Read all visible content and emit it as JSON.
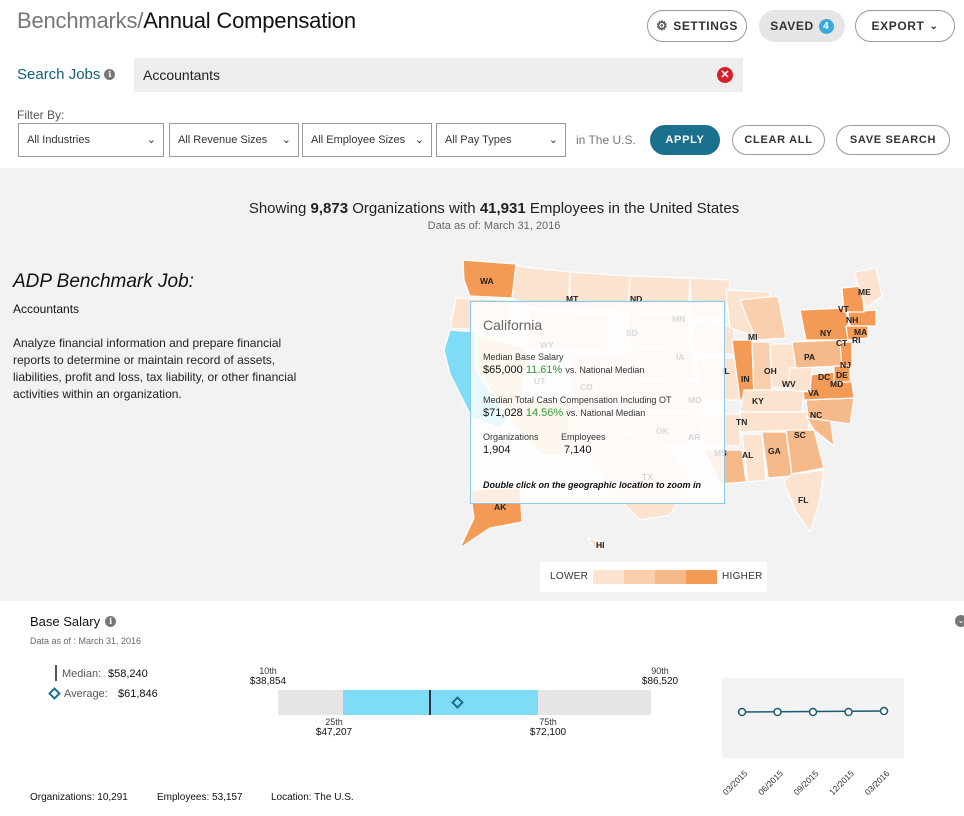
{
  "header": {
    "breadcrumb": "Benchmarks/",
    "title": "Annual Compensation",
    "settings_label": "SETTINGS",
    "saved_label": "SAVED",
    "saved_count": "4",
    "export_label": "EXPORT"
  },
  "search": {
    "label": "Search Jobs",
    "value": "Accountants"
  },
  "filters": {
    "label": "Filter By:",
    "industries": "All Industries",
    "revenue": "All Revenue Sizes",
    "employees": "All Employee Sizes",
    "pay_types": "All Pay Types",
    "region": "in The U.S.",
    "apply": "APPLY",
    "clear_all": "CLEAR ALL",
    "save_search": "SAVE SEARCH"
  },
  "summary": {
    "showing_pre": "Showing ",
    "orgs": "9,873",
    "mid": " Organizations with ",
    "employees": "41,931",
    "post": " Employees in the United States",
    "data_as_of": "Data as of: March 31, 2016"
  },
  "job": {
    "heading": "ADP Benchmark Job:",
    "name": "Accountants",
    "description": "Analyze financial information and prepare financial reports to determine or maintain record of assets, liabilities, profit and loss, tax liability, or other financial activities within an organization."
  },
  "map": {
    "state_labels": [
      "WA",
      "MT",
      "ND",
      "MN",
      "WY",
      "SD",
      "IA",
      "UT",
      "CO",
      "MO",
      "OK",
      "AR",
      "TX",
      "MS",
      "AL",
      "GA",
      "SC",
      "NC",
      "TN",
      "KY",
      "VA",
      "WV",
      "OH",
      "IN",
      "IL",
      "MI",
      "PA",
      "NY",
      "NJ",
      "DE",
      "MD",
      "DC",
      "CT",
      "RI",
      "MA",
      "NH",
      "VT",
      "ME",
      "FL",
      "AK",
      "HI"
    ],
    "tooltip": {
      "state": "California",
      "base_label": "Median Base Salary",
      "base_value": "$65,000",
      "base_pct": "11.61%",
      "vs": "vs. National Median",
      "tcc_label": "Median Total Cash Compensation Including OT",
      "tcc_value": "$71,028",
      "tcc_pct": "14.56%",
      "org_label": "Organizations",
      "org_value": "1,904",
      "emp_label": "Employees",
      "emp_value": "7,140",
      "hint": "Double click on the geographic location to zoom in"
    },
    "legend": {
      "low": "LOWER",
      "high": "HIGHER",
      "colors": [
        "#fce3d0",
        "#f9cfae",
        "#f6b98a",
        "#f39a57"
      ]
    }
  },
  "base_salary": {
    "title": "Base Salary",
    "data_as_of": "Data as of : March 31, 2016",
    "median_label": "Median:",
    "median_value": "$58,240",
    "average_label": "Average:",
    "average_value": "$61,846",
    "p10_label": "10th",
    "p10_value": "$38,854",
    "p25_label": "25th",
    "p25_value": "$47,207",
    "p75_label": "75th",
    "p75_value": "$72,100",
    "p90_label": "90th",
    "p90_value": "$86,520",
    "trend_dates": [
      "03/2015",
      "06/2015",
      "09/2015",
      "12/2015",
      "03/2016"
    ],
    "footer_orgs": "Organizations: 10,291",
    "footer_emps": "Employees: 53,157",
    "footer_loc": "Location: The U.S."
  }
}
